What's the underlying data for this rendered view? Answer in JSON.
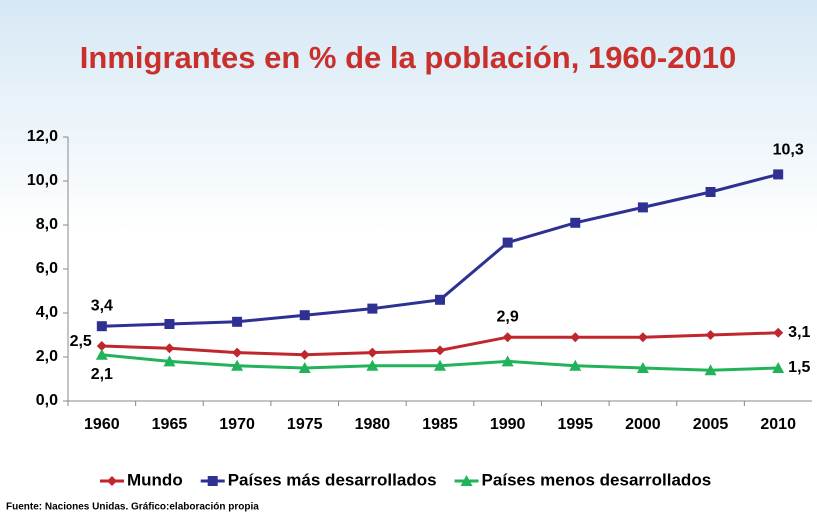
{
  "chart_data": {
    "type": "line",
    "title": "Inmigrantes en % de la población, 1960-2010",
    "categories": [
      "1960",
      "1965",
      "1970",
      "1975",
      "1980",
      "1985",
      "1990",
      "1995",
      "2000",
      "2005",
      "2010"
    ],
    "series": [
      {
        "name": "Mundo",
        "color": "#c0272d",
        "marker": "diamond",
        "values": [
          2.5,
          2.4,
          2.2,
          2.1,
          2.2,
          2.3,
          2.9,
          2.9,
          2.9,
          3.0,
          3.1
        ],
        "value_labels": [
          "2,5",
          null,
          null,
          null,
          null,
          null,
          "2,9",
          null,
          null,
          null,
          "3,1"
        ]
      },
      {
        "name": "Países más desarrollados",
        "color": "#2e3192",
        "marker": "square",
        "values": [
          3.4,
          3.5,
          3.6,
          3.9,
          4.2,
          4.6,
          7.2,
          8.1,
          8.8,
          9.5,
          10.3
        ],
        "value_labels": [
          "3,4",
          null,
          null,
          null,
          null,
          null,
          null,
          null,
          null,
          null,
          "10,3"
        ]
      },
      {
        "name": "Países menos desarrollados",
        "color": "#22b35a",
        "marker": "triangle",
        "values": [
          2.1,
          1.8,
          1.6,
          1.5,
          1.6,
          1.6,
          1.8,
          1.6,
          1.5,
          1.4,
          1.5
        ],
        "value_labels": [
          "2,1",
          null,
          null,
          null,
          null,
          null,
          null,
          null,
          null,
          null,
          "1,5"
        ]
      }
    ],
    "ylim": [
      0,
      12
    ],
    "yticks": [
      {
        "value": 0,
        "label": "0,0"
      },
      {
        "value": 2,
        "label": "2,0"
      },
      {
        "value": 4,
        "label": "4,0"
      },
      {
        "value": 6,
        "label": "6,0"
      },
      {
        "value": 8,
        "label": "8,0"
      },
      {
        "value": 10,
        "label": "10,0"
      },
      {
        "value": 12,
        "label": "12,0"
      }
    ],
    "legend": "bottom",
    "source": "Fuente: Naciones Unidas. Gráfico:elaboración propia"
  }
}
